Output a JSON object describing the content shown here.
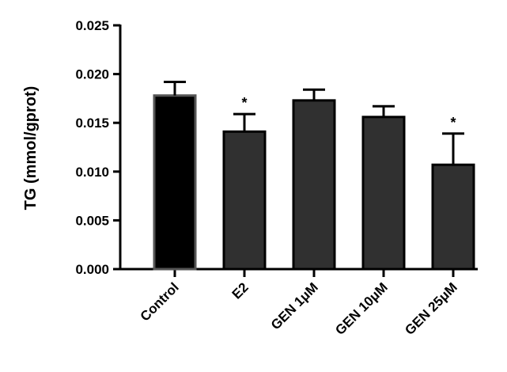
{
  "chart_data": {
    "type": "bar",
    "title": "",
    "xlabel": "",
    "ylabel": "TG (mmol/gprot)",
    "ylim": [
      0,
      0.025
    ],
    "yticks": [
      "0.000",
      "0.005",
      "0.010",
      "0.015",
      "0.020",
      "0.025"
    ],
    "ytick_values": [
      0,
      0.005,
      0.01,
      0.015,
      0.02,
      0.025
    ],
    "categories": [
      "Control",
      "E2",
      "GEN 1μM",
      "GEN 10μM",
      "GEN 25μM"
    ],
    "values": [
      0.0178,
      0.0141,
      0.0173,
      0.0156,
      0.0107
    ],
    "error_upper": [
      0.0014,
      0.0018,
      0.0011,
      0.0011,
      0.0032
    ],
    "significance": [
      "",
      "*",
      "",
      "",
      "*"
    ],
    "bar_colors": [
      "#000000",
      "#303030",
      "#303030",
      "#303030",
      "#303030"
    ],
    "bar_edge_colors": [
      "#555555",
      "#000000",
      "#000000",
      "#000000",
      "#000000"
    ],
    "grid": false,
    "legend": "none"
  }
}
